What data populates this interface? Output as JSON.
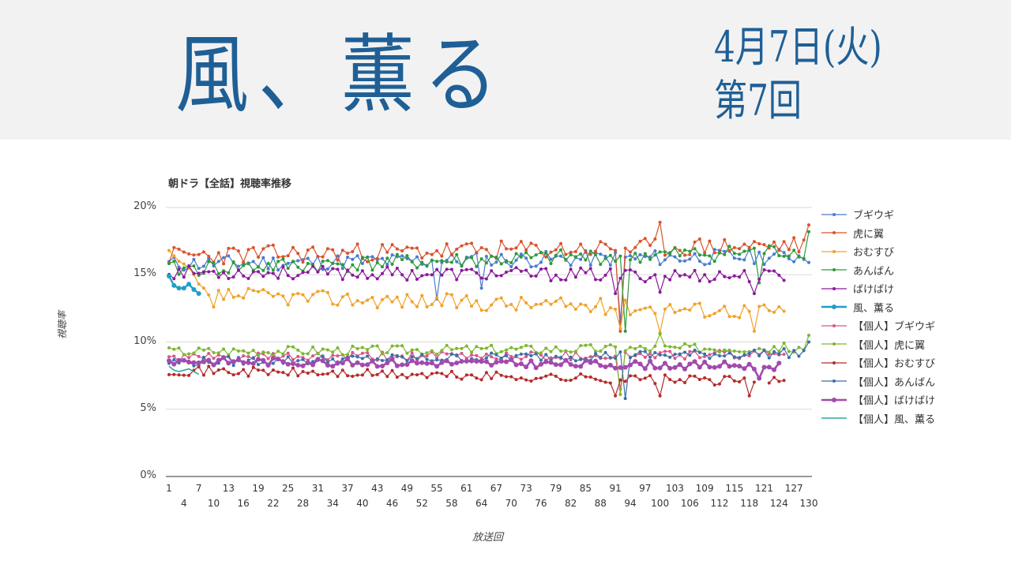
{
  "header": {
    "title": "風、薫る",
    "date": "4月7日(火)",
    "episode": "第7回"
  },
  "chart_data": {
    "type": "line",
    "title": "朝ドラ【全話】視聴率推移",
    "xlabel": "放送回",
    "ylabel": "視聴率",
    "ylim": [
      0,
      20
    ],
    "xlim": [
      1,
      130
    ],
    "y_ticks": [
      "0%",
      "5%",
      "10%",
      "15%",
      "20%"
    ],
    "x_ticks_row1": [
      "1",
      "7",
      "13",
      "19",
      "25",
      "31",
      "37",
      "43",
      "49",
      "55",
      "61",
      "67",
      "73",
      "79",
      "85",
      "91",
      "97",
      "103",
      "109",
      "115",
      "121",
      "127"
    ],
    "x_ticks_row2": [
      "4",
      "10",
      "16",
      "22",
      "28",
      "34",
      "40",
      "46",
      "52",
      "58",
      "64",
      "70",
      "76",
      "82",
      "88",
      "94",
      "100",
      "106",
      "112",
      "118",
      "124",
      "130"
    ],
    "grid": true,
    "legend_position": "right",
    "series": [
      {
        "name": "ブギウギ",
        "color": "#4a7bd0",
        "marker": 3,
        "width": 1.2,
        "length": 130,
        "base": 15.8,
        "trend": 0.6,
        "noise": 0.6,
        "seed": 11,
        "dips": {
          "55": 13.2,
          "64": 14.0,
          "92": 11.5
        }
      },
      {
        "name": "虎に翼",
        "color": "#d9532c",
        "marker": 3,
        "width": 1.2,
        "length": 130,
        "base": 16.4,
        "trend": 0.8,
        "noise": 0.7,
        "seed": 23,
        "dips": {
          "92": 10.8,
          "100": 18.9,
          "130": 18.7
        }
      },
      {
        "name": "おむすび",
        "color": "#f0a22a",
        "marker": 3,
        "width": 1.2,
        "length": 125,
        "base": 13.6,
        "trend": -1.4,
        "noise": 0.6,
        "seed": 37,
        "start": [
          16.8,
          16.4,
          16.0,
          15.8,
          15.5,
          15.0,
          14.3,
          14.0,
          13.5,
          12.6
        ],
        "dips": {
          "92": 11.0,
          "100": 10.7,
          "119": 10.8
        }
      },
      {
        "name": "あんばん",
        "color": "#2e9a3a",
        "marker": 3,
        "width": 1.2,
        "length": 130,
        "base": 15.4,
        "trend": 1.4,
        "noise": 0.6,
        "seed": 41,
        "dips": {
          "93": 10.8,
          "120": 14.4,
          "130": 18.2
        }
      },
      {
        "name": "ばけばけ",
        "color": "#8a1a9a",
        "marker": 3,
        "width": 1.2,
        "length": 125,
        "base": 15.2,
        "trend": -0.3,
        "noise": 0.5,
        "seed": 53,
        "dips": {
          "91": 13.6,
          "100": 13.7,
          "119": 13.6
        }
      },
      {
        "name": "風、薫る",
        "color": "#1f9fc8",
        "marker": 5,
        "width": 2.4,
        "length": 7,
        "values": [
          14.9,
          14.2,
          14.0,
          14.0,
          14.3,
          13.9,
          13.6
        ]
      },
      {
        "name": "【個人】ブギウギ",
        "color": "#d9558a",
        "marker": 3,
        "width": 1.2,
        "length": 125,
        "base": 8.8,
        "trend": 0.3,
        "noise": 0.35,
        "seed": 61,
        "dips": {
          "92": 6.5
        }
      },
      {
        "name": "【個人】虎に翼",
        "color": "#7cb82e",
        "marker": 3,
        "width": 1.2,
        "length": 130,
        "base": 9.3,
        "trend": 0.3,
        "noise": 0.35,
        "seed": 67,
        "dips": {
          "92": 6.1,
          "100": 10.6,
          "130": 10.5
        }
      },
      {
        "name": "【個人】おむすび",
        "color": "#b52a2a",
        "marker": 3,
        "width": 1.2,
        "length": 125,
        "base": 7.9,
        "trend": -0.9,
        "noise": 0.35,
        "seed": 71,
        "gap": [
          120,
          121
        ],
        "dips": {
          "91": 6.0,
          "100": 6.0,
          "118": 6.0
        }
      },
      {
        "name": "【個人】あんばん",
        "color": "#3a6fa8",
        "marker": 3,
        "width": 1.2,
        "length": 130,
        "base": 8.5,
        "trend": 0.7,
        "noise": 0.35,
        "seed": 79,
        "dips": {
          "93": 5.8,
          "130": 10.0
        }
      },
      {
        "name": "【個人】ばけばけ",
        "color": "#a24aae",
        "marker": 5,
        "width": 2.6,
        "length": 124,
        "base": 8.6,
        "trend": -0.4,
        "noise": 0.3,
        "seed": 83,
        "dips": {
          "120": 7.3
        }
      },
      {
        "name": "【個人】風、薫る",
        "color": "#2aa8a0",
        "marker": 0,
        "width": 1.6,
        "length": 7,
        "values": [
          8.2,
          7.9,
          7.8,
          7.9,
          8.0,
          7.8,
          7.6
        ]
      }
    ]
  }
}
